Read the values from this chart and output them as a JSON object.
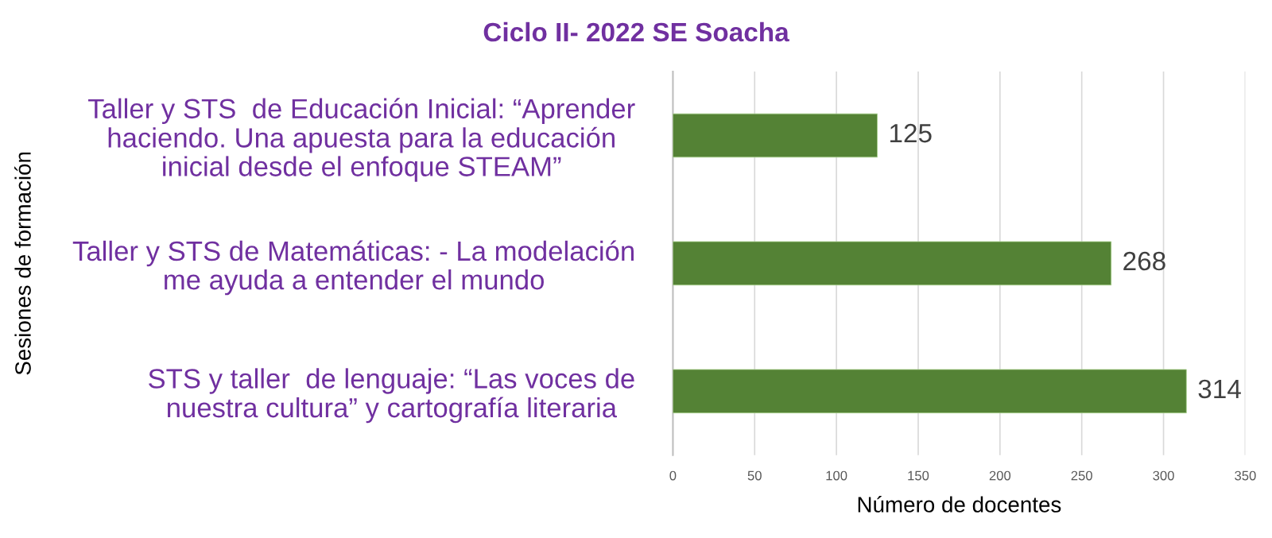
{
  "chart_data": {
    "type": "bar",
    "orientation": "horizontal",
    "title": "Ciclo II- 2022 SE Soacha",
    "xlabel": "Número de docentes",
    "ylabel": "Sesiones de formación",
    "categories": [
      "Taller y STS  de Educación Inicial: “Aprender\nhaciendo. Una apuesta para la educación\ninicial desde el enfoque STEAM”",
      "Taller y STS de Matemáticas: - La modelación\nme ayuda a entender el mundo",
      "STS y taller  de lenguaje: “Las voces de\nnuestra cultura” y cartografía literaria"
    ],
    "values": [
      125,
      268,
      314
    ],
    "color": "#548235",
    "xlim": [
      0,
      350
    ],
    "xticks": [
      0,
      50,
      100,
      150,
      200,
      250,
      300,
      350
    ],
    "grid": "x",
    "data_labels": true
  }
}
